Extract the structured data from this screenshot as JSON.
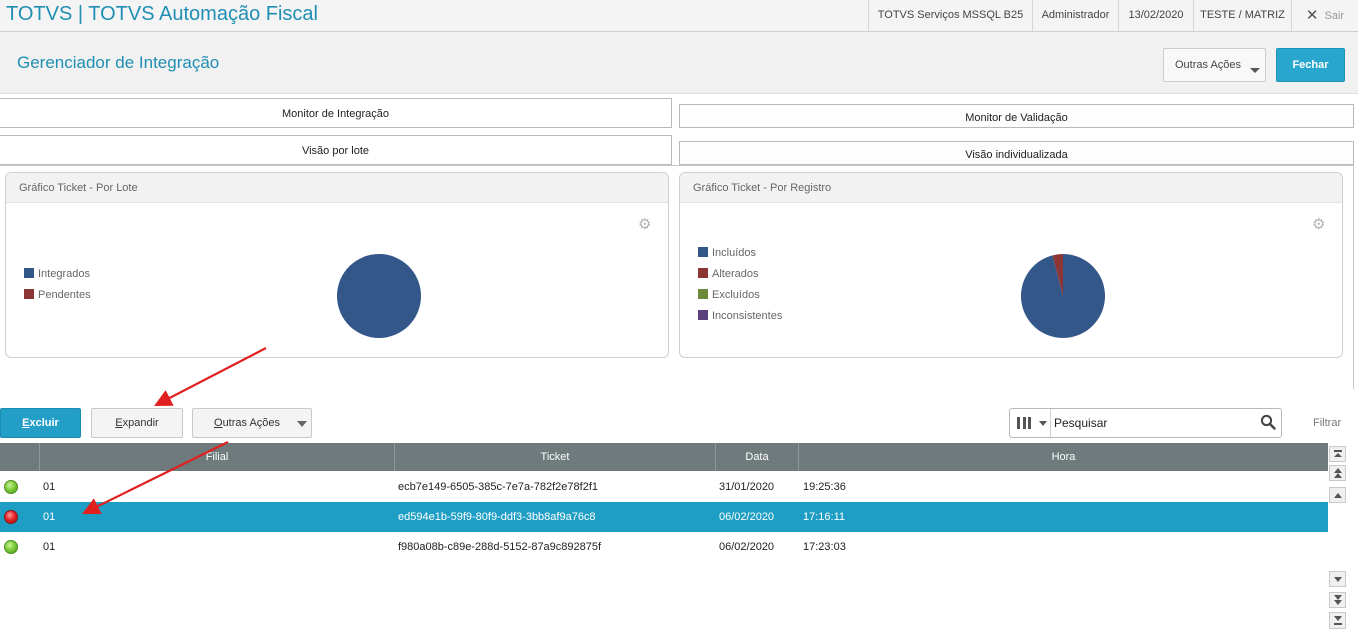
{
  "app": {
    "title": "TOTVS | TOTVS Automação Fiscal"
  },
  "topbar": {
    "server": "TOTVS Serviços MSSQL B25",
    "user": "Administrador",
    "date": "13/02/2020",
    "branch": "TESTE / MATRIZ",
    "exit_label": "Sair"
  },
  "header": {
    "title": "Gerenciador de Integração",
    "other_actions_label": "Outras Ações",
    "close_label": "Fechar"
  },
  "tabs": {
    "primary": [
      "Monitor de Integração",
      "Monitor de Validação"
    ],
    "secondary": [
      "Visão por lote",
      "Visão individualizada"
    ]
  },
  "charts": {
    "lote": {
      "title": "Gráfico Ticket - Por Lote",
      "legend": [
        {
          "label": "Integrados",
          "color": "#34578a"
        },
        {
          "label": "Pendentes",
          "color": "#8b3535"
        }
      ]
    },
    "registro": {
      "title": "Gráfico Ticket - Por Registro",
      "legend": [
        {
          "label": "Incluídos",
          "color": "#34578a"
        },
        {
          "label": "Alterados",
          "color": "#8b3535"
        },
        {
          "label": "Excluídos",
          "color": "#6a8a3a"
        },
        {
          "label": "Inconsistentes",
          "color": "#5a3f7a"
        }
      ]
    }
  },
  "chart_data": [
    {
      "type": "pie",
      "title": "Gráfico Ticket - Por Lote",
      "labels": [
        "Integrados",
        "Pendentes"
      ],
      "values": [
        100,
        0
      ]
    },
    {
      "type": "pie",
      "title": "Gráfico Ticket - Por Registro",
      "labels": [
        "Incluídos",
        "Alterados",
        "Excluídos",
        "Inconsistentes"
      ],
      "values": [
        96,
        4,
        0,
        0
      ]
    }
  ],
  "toolbar": {
    "delete_label": "Excluir",
    "delete_accel": "E",
    "delete_rest": "xcluir",
    "expand_accel": "E",
    "expand_rest": "xpandir",
    "other_accel": "O",
    "other_rest": "utras Ações",
    "search_placeholder": "Pesquisar",
    "filter_label": "Filtrar"
  },
  "grid": {
    "columns": [
      "Filial",
      "Ticket",
      "Data",
      "Hora"
    ],
    "rows": [
      {
        "status": "ok",
        "filial": "01",
        "ticket": "ecb7e149-6505-385c-7e7a-782f2e78f2f1",
        "data": "31/01/2020",
        "hora": "19:25:36"
      },
      {
        "status": "error",
        "filial": "01",
        "ticket": "ed594e1b-59f9-80f9-ddf3-3bb8af9a76c8",
        "data": "06/02/2020",
        "hora": "17:16:11"
      },
      {
        "status": "ok",
        "filial": "01",
        "ticket": "f980a08b-c89e-288d-5152-87a9c892875f",
        "data": "06/02/2020",
        "hora": "17:23:03"
      }
    ]
  },
  "annotations": {
    "arrow_color": "#e0201f"
  }
}
